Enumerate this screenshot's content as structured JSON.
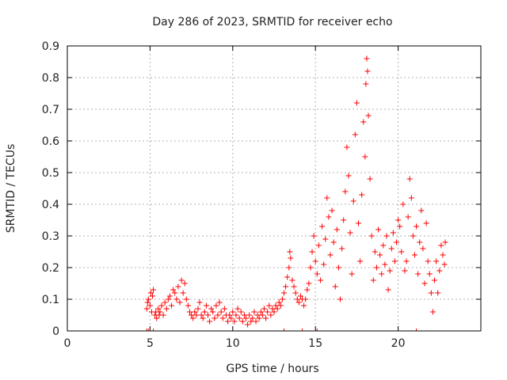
{
  "chart_data": {
    "type": "scatter",
    "title": "Day 286 of 2023, SRMTID for receiver echo",
    "xlabel": "GPS time / hours",
    "ylabel": "SRMTID / TECUs",
    "xlim": [
      0,
      25
    ],
    "ylim": [
      0,
      0.9
    ],
    "xticks": [
      0,
      5,
      10,
      15,
      20
    ],
    "xtick_labels": [
      "0",
      "5",
      "10",
      "15",
      "20"
    ],
    "yticks": [
      0,
      0.1,
      0.2,
      0.3,
      0.4,
      0.5,
      0.6,
      0.7,
      0.8,
      0.9
    ],
    "ytick_labels": [
      "0",
      "0.1",
      "0.2",
      "0.3",
      "0.4",
      "0.5",
      "0.6",
      "0.7",
      "0.8",
      "0.9"
    ],
    "grid": true,
    "marker": "+",
    "color": "#ff0000",
    "series": [
      {
        "name": "SRMTID",
        "points": [
          [
            4.8,
            0.07
          ],
          [
            4.85,
            0.09
          ],
          [
            4.9,
            0.1
          ],
          [
            5.0,
            0.08
          ],
          [
            5.05,
            0.12
          ],
          [
            5.1,
            0.06
          ],
          [
            5.15,
            0.11
          ],
          [
            5.2,
            0.13
          ],
          [
            5.3,
            0.05
          ],
          [
            5.35,
            0.06
          ],
          [
            5.4,
            0.04
          ],
          [
            5.5,
            0.07
          ],
          [
            5.55,
            0.05
          ],
          [
            5.6,
            0.06
          ],
          [
            5.7,
            0.08
          ],
          [
            5.8,
            0.05
          ],
          [
            5.9,
            0.09
          ],
          [
            6.0,
            0.07
          ],
          [
            6.1,
            0.1
          ],
          [
            6.2,
            0.11
          ],
          [
            6.3,
            0.08
          ],
          [
            6.4,
            0.13
          ],
          [
            6.5,
            0.12
          ],
          [
            6.6,
            0.1
          ],
          [
            6.7,
            0.14
          ],
          [
            6.8,
            0.09
          ],
          [
            6.9,
            0.16
          ],
          [
            7.0,
            0.12
          ],
          [
            7.1,
            0.15
          ],
          [
            7.2,
            0.1
          ],
          [
            7.3,
            0.08
          ],
          [
            7.4,
            0.06
          ],
          [
            7.5,
            0.05
          ],
          [
            7.6,
            0.04
          ],
          [
            7.7,
            0.06
          ],
          [
            7.8,
            0.05
          ],
          [
            7.9,
            0.07
          ],
          [
            8.0,
            0.09
          ],
          [
            8.1,
            0.05
          ],
          [
            8.2,
            0.04
          ],
          [
            8.3,
            0.06
          ],
          [
            8.4,
            0.08
          ],
          [
            8.5,
            0.05
          ],
          [
            8.6,
            0.03
          ],
          [
            8.7,
            0.07
          ],
          [
            8.8,
            0.06
          ],
          [
            8.9,
            0.04
          ],
          [
            9.0,
            0.08
          ],
          [
            9.1,
            0.05
          ],
          [
            9.2,
            0.09
          ],
          [
            9.3,
            0.06
          ],
          [
            9.4,
            0.04
          ],
          [
            9.5,
            0.07
          ],
          [
            9.6,
            0.05
          ],
          [
            9.7,
            0.03
          ],
          [
            9.8,
            0.05
          ],
          [
            9.9,
            0.04
          ],
          [
            10.0,
            0.06
          ],
          [
            10.1,
            0.03
          ],
          [
            10.2,
            0.05
          ],
          [
            10.3,
            0.07
          ],
          [
            10.4,
            0.04
          ],
          [
            10.5,
            0.06
          ],
          [
            10.6,
            0.03
          ],
          [
            10.7,
            0.05
          ],
          [
            10.8,
            0.04
          ],
          [
            10.9,
            0.02
          ],
          [
            11.0,
            0.05
          ],
          [
            11.1,
            0.03
          ],
          [
            11.2,
            0.04
          ],
          [
            11.3,
            0.06
          ],
          [
            11.4,
            0.03
          ],
          [
            11.5,
            0.05
          ],
          [
            11.6,
            0.04
          ],
          [
            11.7,
            0.06
          ],
          [
            11.8,
            0.05
          ],
          [
            11.9,
            0.07
          ],
          [
            12.0,
            0.04
          ],
          [
            12.1,
            0.06
          ],
          [
            12.2,
            0.08
          ],
          [
            12.3,
            0.05
          ],
          [
            12.4,
            0.07
          ],
          [
            12.5,
            0.06
          ],
          [
            12.6,
            0.08
          ],
          [
            12.7,
            0.07
          ],
          [
            12.8,
            0.09
          ],
          [
            12.9,
            0.08
          ],
          [
            13.0,
            0.1
          ],
          [
            13.1,
            0.12
          ],
          [
            13.2,
            0.14
          ],
          [
            13.3,
            0.17
          ],
          [
            13.4,
            0.2
          ],
          [
            13.45,
            0.25
          ],
          [
            13.5,
            0.23
          ],
          [
            13.6,
            0.16
          ],
          [
            13.7,
            0.14
          ],
          [
            13.8,
            0.12
          ],
          [
            13.9,
            0.1
          ],
          [
            14.0,
            0.09
          ],
          [
            14.1,
            0.11
          ],
          [
            14.2,
            0.1
          ],
          [
            14.3,
            0.08
          ],
          [
            14.4,
            0.1
          ],
          [
            14.5,
            0.13
          ],
          [
            14.6,
            0.15
          ],
          [
            14.7,
            0.2
          ],
          [
            14.8,
            0.25
          ],
          [
            14.9,
            0.3
          ],
          [
            15.0,
            0.22
          ],
          [
            15.1,
            0.18
          ],
          [
            15.2,
            0.27
          ],
          [
            15.3,
            0.16
          ],
          [
            15.4,
            0.33
          ],
          [
            15.5,
            0.21
          ],
          [
            15.6,
            0.29
          ],
          [
            15.7,
            0.42
          ],
          [
            15.8,
            0.36
          ],
          [
            15.9,
            0.24
          ],
          [
            16.0,
            0.38
          ],
          [
            16.1,
            0.28
          ],
          [
            16.2,
            0.14
          ],
          [
            16.3,
            0.32
          ],
          [
            16.4,
            0.2
          ],
          [
            16.5,
            0.1
          ],
          [
            16.6,
            0.26
          ],
          [
            16.7,
            0.35
          ],
          [
            16.8,
            0.44
          ],
          [
            16.9,
            0.58
          ],
          [
            17.0,
            0.49
          ],
          [
            17.1,
            0.31
          ],
          [
            17.2,
            0.18
          ],
          [
            17.3,
            0.41
          ],
          [
            17.4,
            0.62
          ],
          [
            17.5,
            0.72
          ],
          [
            17.6,
            0.34
          ],
          [
            17.7,
            0.22
          ],
          [
            17.8,
            0.43
          ],
          [
            17.9,
            0.66
          ],
          [
            18.0,
            0.55
          ],
          [
            18.05,
            0.78
          ],
          [
            18.1,
            0.86
          ],
          [
            18.15,
            0.82
          ],
          [
            18.2,
            0.68
          ],
          [
            18.3,
            0.48
          ],
          [
            18.4,
            0.3
          ],
          [
            18.5,
            0.16
          ],
          [
            18.6,
            0.25
          ],
          [
            18.7,
            0.2
          ],
          [
            18.8,
            0.32
          ],
          [
            18.9,
            0.24
          ],
          [
            19.0,
            0.18
          ],
          [
            19.1,
            0.27
          ],
          [
            19.2,
            0.21
          ],
          [
            19.3,
            0.3
          ],
          [
            19.4,
            0.13
          ],
          [
            19.5,
            0.19
          ],
          [
            19.6,
            0.26
          ],
          [
            19.7,
            0.31
          ],
          [
            19.8,
            0.22
          ],
          [
            19.9,
            0.28
          ],
          [
            20.0,
            0.35
          ],
          [
            20.1,
            0.33
          ],
          [
            20.2,
            0.25
          ],
          [
            20.3,
            0.4
          ],
          [
            20.4,
            0.19
          ],
          [
            20.5,
            0.22
          ],
          [
            20.6,
            0.36
          ],
          [
            20.7,
            0.48
          ],
          [
            20.8,
            0.42
          ],
          [
            20.9,
            0.3
          ],
          [
            21.0,
            0.24
          ],
          [
            21.1,
            0.33
          ],
          [
            21.2,
            0.18
          ],
          [
            21.3,
            0.28
          ],
          [
            21.4,
            0.38
          ],
          [
            21.5,
            0.26
          ],
          [
            21.6,
            0.15
          ],
          [
            21.7,
            0.34
          ],
          [
            21.8,
            0.22
          ],
          [
            21.9,
            0.18
          ],
          [
            22.0,
            0.12
          ],
          [
            22.1,
            0.06
          ],
          [
            22.2,
            0.16
          ],
          [
            22.3,
            0.22
          ],
          [
            22.4,
            0.12
          ],
          [
            22.5,
            0.19
          ],
          [
            22.6,
            0.27
          ],
          [
            22.7,
            0.24
          ],
          [
            22.8,
            0.21
          ],
          [
            22.85,
            0.28
          ]
        ]
      }
    ],
    "baseline_markers_x": [
      4.8,
      4.9,
      5.2,
      13.1,
      14.2,
      15.1,
      21.1
    ]
  }
}
